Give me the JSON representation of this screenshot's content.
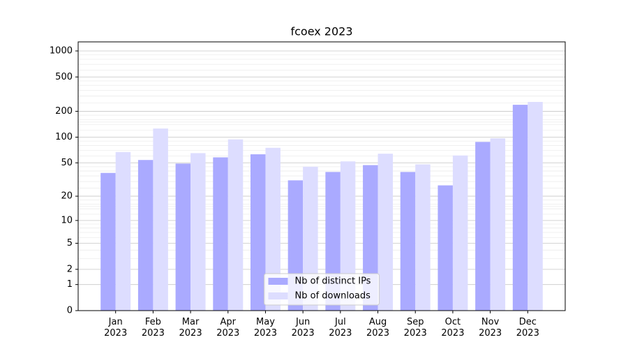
{
  "chart_data": {
    "type": "bar",
    "title": "fcoex 2023",
    "categories": [
      "Jan\n2023",
      "Feb\n2023",
      "Mar\n2023",
      "Apr\n2023",
      "May\n2023",
      "Jun\n2023",
      "Jul\n2023",
      "Aug\n2023",
      "Sep\n2023",
      "Oct\n2023",
      "Nov\n2023",
      "Dec\n2023"
    ],
    "series": [
      {
        "name": "Nb of distinct IPs",
        "color": "#aaaaff",
        "values": [
          38,
          54,
          49,
          58,
          63,
          31,
          39,
          47,
          39,
          27,
          88,
          238
        ]
      },
      {
        "name": "Nb of downloads",
        "color": "#ddddff",
        "values": [
          67,
          126,
          65,
          94,
          75,
          45,
          52,
          64,
          48,
          61,
          97,
          257
        ]
      }
    ],
    "y_scale": "log1p",
    "ylim": [
      0,
      1273
    ],
    "yticks": [
      0,
      1,
      2,
      5,
      10,
      20,
      50,
      100,
      200,
      500,
      1000
    ],
    "grid": true,
    "legend": "lower center"
  }
}
